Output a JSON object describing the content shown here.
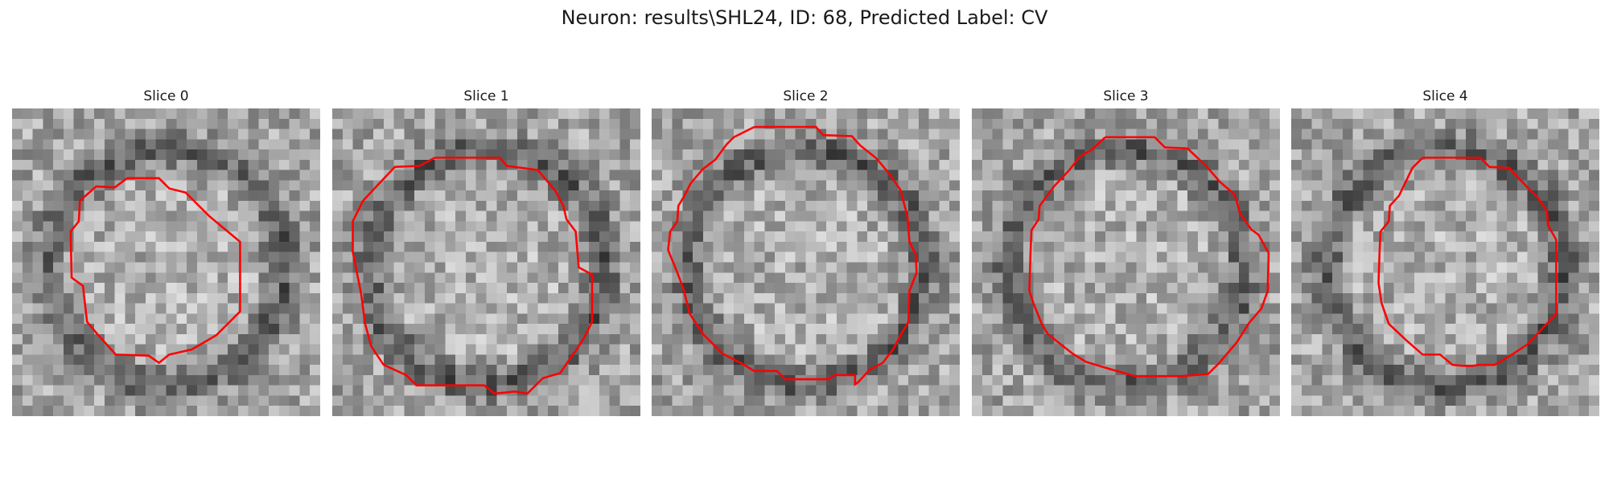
{
  "figure": {
    "title": "Neuron: results\\SHL24, ID: 68, Predicted Label: CV"
  },
  "contour_color": "#ff0000",
  "image_colormap": "gray",
  "panels": [
    {
      "title": "Slice 0"
    },
    {
      "title": "Slice 1"
    },
    {
      "title": "Slice 2"
    },
    {
      "title": "Slice 3"
    },
    {
      "title": "Slice 4"
    }
  ]
}
